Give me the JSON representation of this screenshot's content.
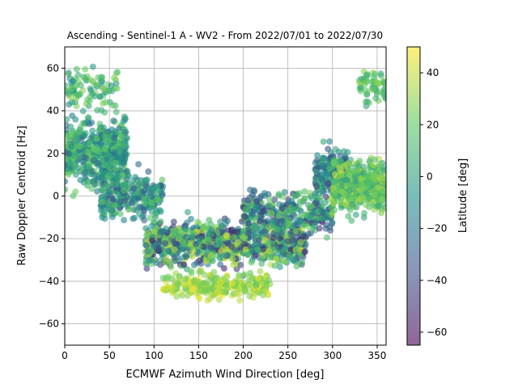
{
  "chart_data": {
    "type": "scatter",
    "title": "Ascending - Sentinel-1 A - WV2 - From 2022/07/01 to 2022/07/30",
    "xlabel": "ECMWF Azimuth Wind Direction [deg]",
    "ylabel": "Raw Doppler Centroid [Hz]",
    "xlim": [
      0,
      360
    ],
    "ylim": [
      -70,
      70
    ],
    "xticks": [
      0,
      50,
      100,
      150,
      200,
      250,
      300,
      350
    ],
    "yticks": [
      -60,
      -40,
      -20,
      0,
      20,
      40,
      60
    ],
    "grid": true,
    "point_alpha": 0.6,
    "colorbar": {
      "label": "Latitude [deg]",
      "range": [
        -65,
        50
      ],
      "ticks": [
        -60,
        -40,
        -20,
        0,
        20,
        40
      ],
      "colormap": "viridis",
      "colors": [
        "#440154",
        "#3b528b",
        "#21918c",
        "#5ec962",
        "#fde725"
      ]
    },
    "point_clusters": [
      {
        "x_range": [
          0,
          70
        ],
        "y_center": 20,
        "y_spread": 22,
        "lat_range": [
          -25,
          25
        ],
        "count": 520
      },
      {
        "x_range": [
          0,
          60
        ],
        "y_center": 50,
        "y_spread": 12,
        "lat_range": [
          -10,
          30
        ],
        "count": 90
      },
      {
        "x_range": [
          40,
          110
        ],
        "y_center": 0,
        "y_spread": 14,
        "lat_range": [
          -35,
          20
        ],
        "count": 260
      },
      {
        "x_range": [
          90,
          270
        ],
        "y_center": -22,
        "y_spread": 14,
        "lat_range": [
          -55,
          45
        ],
        "count": 900
      },
      {
        "x_range": [
          110,
          230
        ],
        "y_center": -42,
        "y_spread": 8,
        "lat_range": [
          20,
          48
        ],
        "count": 260
      },
      {
        "x_range": [
          200,
          300
        ],
        "y_center": -8,
        "y_spread": 14,
        "lat_range": [
          -50,
          30
        ],
        "count": 320
      },
      {
        "x_range": [
          280,
          320
        ],
        "y_center": 12,
        "y_spread": 14,
        "lat_range": [
          -45,
          15
        ],
        "count": 150
      },
      {
        "x_range": [
          300,
          360
        ],
        "y_center": 5,
        "y_spread": 16,
        "lat_range": [
          0,
          40
        ],
        "count": 480
      },
      {
        "x_range": [
          330,
          360
        ],
        "y_center": 50,
        "y_spread": 12,
        "lat_range": [
          0,
          30
        ],
        "count": 60
      }
    ]
  }
}
